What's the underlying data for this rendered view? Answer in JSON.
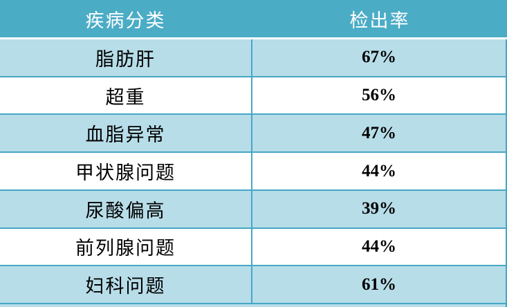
{
  "table": {
    "header": {
      "category": "疾病分类",
      "rate": "检出率"
    },
    "rows": [
      {
        "category": "脂肪肝",
        "rate": "67%"
      },
      {
        "category": "超重",
        "rate": "56%"
      },
      {
        "category": "血脂异常",
        "rate": "47%"
      },
      {
        "category": "甲状腺问题",
        "rate": "44%"
      },
      {
        "category": "尿酸偏高",
        "rate": "39%"
      },
      {
        "category": "前列腺问题",
        "rate": "44%"
      },
      {
        "category": "妇科问题",
        "rate": "61%"
      }
    ]
  },
  "colors": {
    "header_bg": "#4BACC6",
    "header_text": "#FFFFFF",
    "row_alt_bg": "#B7DDE8",
    "row_bg": "#FFFFFF",
    "border": "#45A7C5",
    "body_text": "#000000"
  },
  "chart_data": {
    "type": "table",
    "columns": [
      "疾病分类",
      "检出率"
    ],
    "categories": [
      "脂肪肝",
      "超重",
      "血脂异常",
      "甲状腺问题",
      "尿酸偏高",
      "前列腺问题",
      "妇科问题"
    ],
    "values": [
      67,
      56,
      47,
      44,
      39,
      44,
      61
    ],
    "value_unit": "%",
    "legend_position": "none",
    "grid": true
  }
}
